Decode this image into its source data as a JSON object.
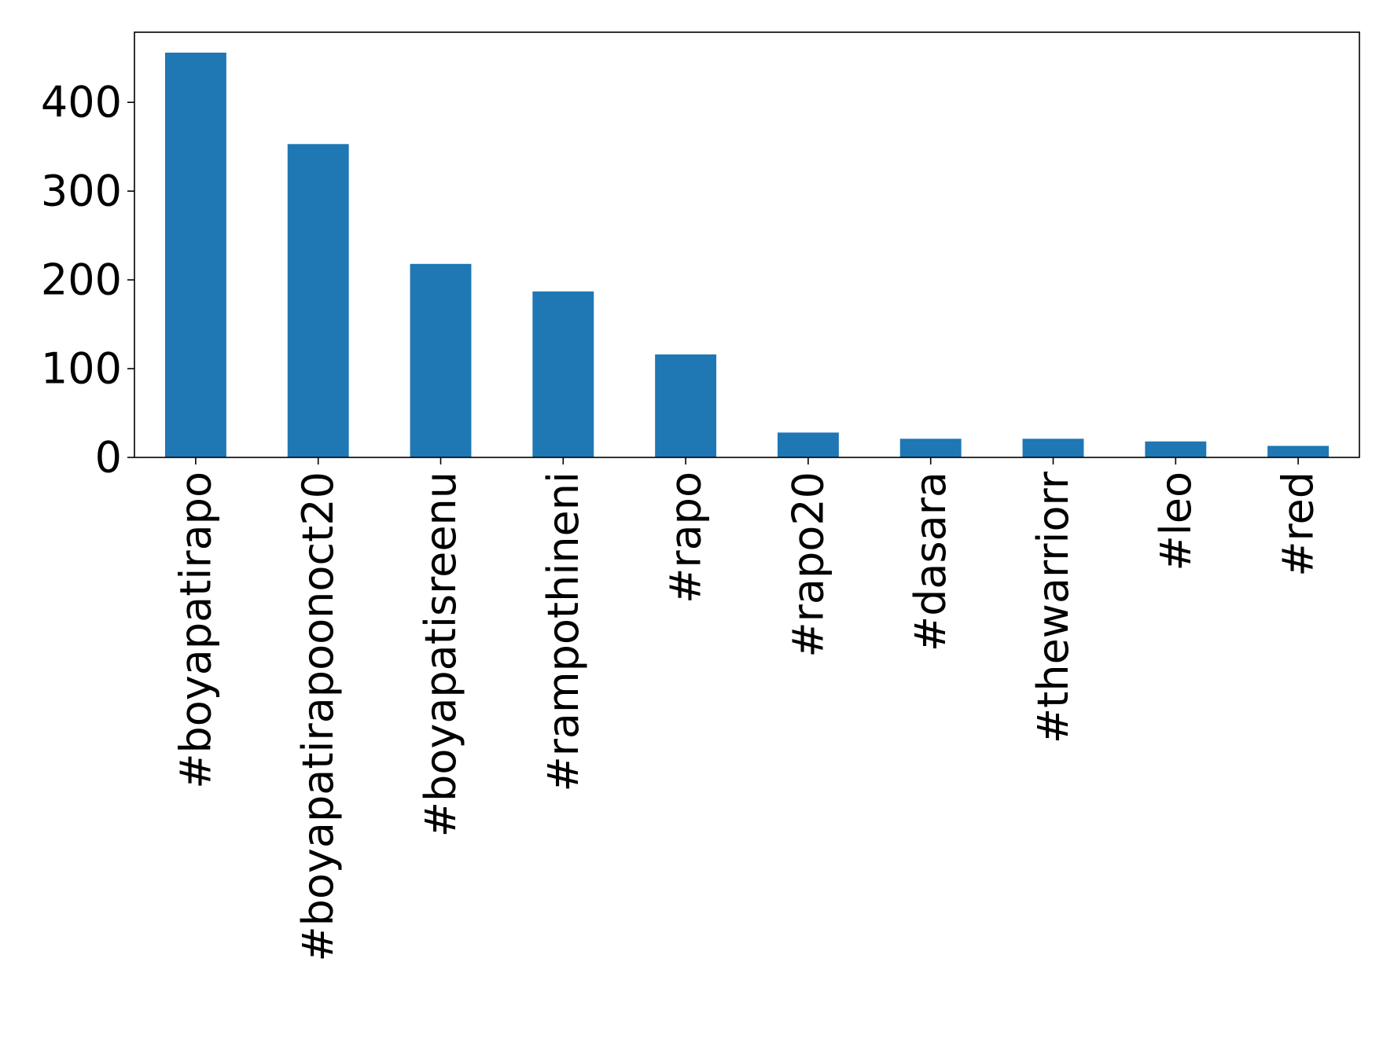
{
  "chart_data": {
    "type": "bar",
    "title": "",
    "xlabel": "",
    "ylabel": "",
    "categories": [
      "#boyapatirapo",
      "#boyapatirapoonoct20",
      "#boyapatisreenu",
      "#rampothineni",
      "#rapo",
      "#rapo20",
      "#dasara",
      "#thewarriorr",
      "#leo",
      "#red"
    ],
    "values": [
      456,
      353,
      218,
      187,
      116,
      28,
      21,
      21,
      18,
      13
    ],
    "ylim": [
      0,
      479
    ],
    "yticks": [
      0,
      100,
      200,
      300,
      400
    ],
    "ytick_labels": [
      "0",
      "100",
      "200",
      "300",
      "400"
    ],
    "bar_color": "#1f77b4",
    "grid": false,
    "legend": "none"
  }
}
